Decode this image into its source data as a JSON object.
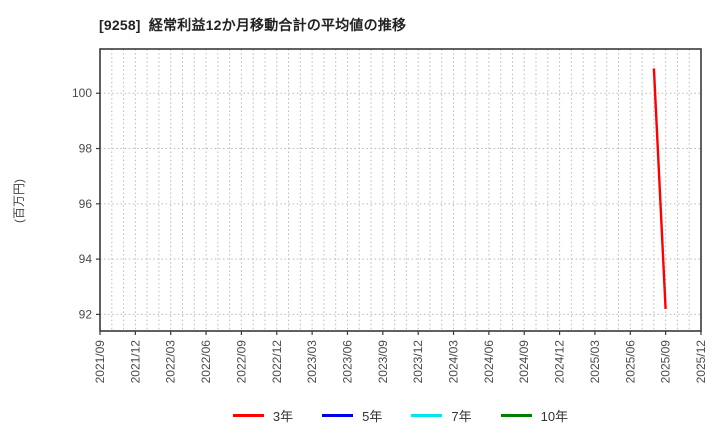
{
  "chart_data": {
    "type": "line",
    "title": "[9258]  経常利益12か月移動合計の平均値の推移",
    "ylabel": "(百万円)",
    "x_tick_labels": [
      "2021/09",
      "2021/12",
      "2022/03",
      "2022/06",
      "2022/09",
      "2022/12",
      "2023/03",
      "2023/06",
      "2023/09",
      "2023/12",
      "2024/03",
      "2024/06",
      "2024/09",
      "2024/12",
      "2025/03",
      "2025/06",
      "2025/09",
      "2025/12"
    ],
    "months_total": 51,
    "months_per_tick": 3,
    "ylim": [
      91.4,
      101.6
    ],
    "y_ticks": [
      92,
      94,
      96,
      98,
      100
    ],
    "grid": "dotted; vertical line every month, horizontal line at each y tick",
    "legend_position": "bottom-center",
    "series": [
      {
        "name": "3年",
        "color": "#ff0000",
        "points": [
          {
            "x": "2025/08",
            "month_index": 47,
            "value": 100.9
          },
          {
            "x": "2025/09",
            "month_index": 48,
            "value": 92.2
          }
        ]
      },
      {
        "name": "5年",
        "color": "#0000ee",
        "points": []
      },
      {
        "name": "7年",
        "color": "#00e5ee",
        "points": []
      },
      {
        "name": "10年",
        "color": "#008000",
        "points": []
      }
    ]
  },
  "colors": {
    "background": "#ffffff",
    "axis": "#3a3a3a",
    "grid": "#b9b9b9",
    "tick_text": "#4a4a4a",
    "title_text": "#222222"
  }
}
